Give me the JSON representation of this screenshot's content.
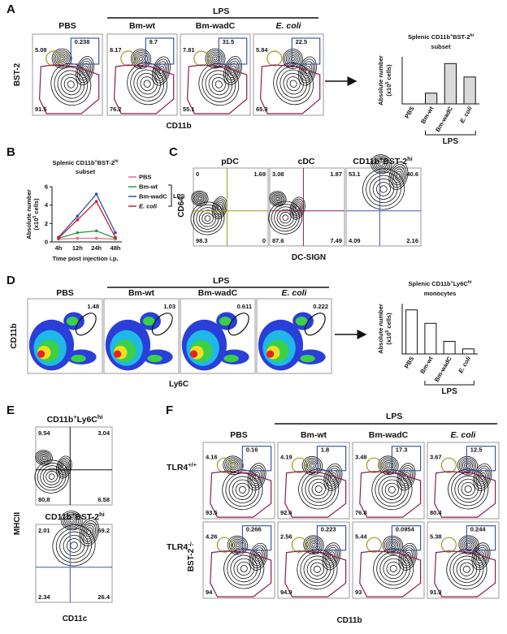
{
  "panel_a": {
    "label": "A",
    "group": "LPS",
    "columns": [
      "PBS",
      "Bm-wt",
      "Bm-wadC",
      "E. coli"
    ],
    "y_axis": "BST-2",
    "x_axis": "CD11b",
    "plots": [
      {
        "gate_left": 5.08,
        "gate_box": 0.238,
        "gate_bottom": 91.5
      },
      {
        "gate_left": 8.17,
        "gate_box": 9.7,
        "gate_bottom": 76.2
      },
      {
        "gate_left": 7.81,
        "gate_box": 31.5,
        "gate_bottom": 55.1
      },
      {
        "gate_left": 5.84,
        "gate_box": 22.5,
        "gate_bottom": 65.3
      }
    ],
    "bar_chart": {
      "type": "bar",
      "title": [
        "Splenic CD11b",
        "+",
        "BST-2",
        "hi"
      ],
      "subtitle": "subset",
      "y_label": "Absolute number",
      "y_label_unit": [
        "(x10",
        "5",
        " cells)"
      ],
      "categories": [
        "PBS",
        "Bm-wt",
        "Bm-wadC",
        "E. coli"
      ],
      "values": [
        0,
        0.8,
        3.0,
        2.0
      ],
      "ylim": [
        0,
        3.5
      ],
      "color": "#d9d9d9",
      "group": "LPS"
    }
  },
  "panel_b": {
    "label": "B",
    "chart": {
      "type": "line",
      "title": [
        "Splenic CD11b",
        "+",
        "BST-2",
        "hi"
      ],
      "subtitle": "subset",
      "y_label": "Absolute number",
      "y_label_unit": [
        "(x10",
        "5",
        " cells)"
      ],
      "x_label": "Time post injection i.p.",
      "categories": [
        "4h",
        "12h",
        "24h",
        "48h"
      ],
      "ylim": [
        0,
        6
      ],
      "yticks": [
        0,
        2,
        4,
        6
      ],
      "group": "LPS",
      "series": [
        {
          "name": "PBS",
          "color": "#e0708a",
          "values": [
            0.3,
            0.4,
            0.4,
            0.3
          ]
        },
        {
          "name": "Bm-wt",
          "color": "#2a9a3a",
          "values": [
            0.4,
            1.0,
            1.2,
            0.4
          ]
        },
        {
          "name": "Bm-wadC",
          "color": "#3050b0",
          "values": [
            0.5,
            2.8,
            5.2,
            1.0
          ]
        },
        {
          "name": "E. coli",
          "color": "#d02020",
          "values": [
            0.4,
            2.4,
            4.4,
            0.5
          ]
        }
      ]
    }
  },
  "panel_c": {
    "label": "C",
    "y_axis": "CD64",
    "x_axis": "DC-SIGN",
    "plots": [
      {
        "title": "pDC",
        "top_left": 0,
        "top_right": 1.69,
        "bottom_left": 98.3,
        "bottom_right": 0
      },
      {
        "title": "cDC",
        "top_left": 3.08,
        "top_right": 1.87,
        "bottom_left": 87.6,
        "bottom_right": 7.49
      },
      {
        "title": [
          "CD11b",
          "+",
          "BST-2",
          "hi"
        ],
        "top_left": 53.1,
        "top_right": 40.6,
        "bottom_left": 4.09,
        "bottom_right": 2.16
      }
    ]
  },
  "panel_d": {
    "label": "D",
    "group": "LPS",
    "columns": [
      "PBS",
      "Bm-wt",
      "Bm-wadC",
      "E. coli"
    ],
    "y_axis": "CD11b",
    "x_axis": "Ly6C",
    "gates": [
      1.48,
      1.03,
      0.611,
      0.222
    ],
    "bar_chart": {
      "type": "bar",
      "title": [
        "Splenic CD11b",
        "+",
        "Ly6C",
        "hi"
      ],
      "subtitle": "monocytes",
      "y_label": "Absolute number",
      "y_label_unit": [
        "(x10",
        "5",
        " cells)"
      ],
      "categories": [
        "PBS",
        "Bm-wt",
        "Bm-wadC",
        "E. coli"
      ],
      "values": [
        10.5,
        7.3,
        3.0,
        1.2
      ],
      "ylim": [
        0,
        12
      ],
      "color": "#ffffff",
      "group": "LPS"
    }
  },
  "panel_e": {
    "label": "E",
    "y_axis": "MHCII",
    "x_axis": "CD11c",
    "plots": [
      {
        "title": [
          "CD11b",
          "+",
          "Ly6C",
          "hi"
        ],
        "top_left": 9.54,
        "top_right": 3.04,
        "bottom_left": 80.8,
        "bottom_right": 6.58
      },
      {
        "title": [
          "CD11b",
          "+",
          "BST-2",
          "hi"
        ],
        "top_left": 2.01,
        "top_right": 69.2,
        "bottom_left": 2.34,
        "bottom_right": 26.4
      }
    ]
  },
  "panel_f": {
    "label": "F",
    "group": "LPS",
    "columns": [
      "PBS",
      "Bm-wt",
      "Bm-wadC",
      "E. coli"
    ],
    "rows": [
      [
        "TLR4",
        "+/+"
      ],
      [
        "TLR4",
        "-/-"
      ]
    ],
    "y_axis": "BST-2",
    "x_axis": "CD11b",
    "plots": [
      [
        {
          "gate_left": 4.16,
          "gate_box": 0.16,
          "gate_bottom": 93.5
        },
        {
          "gate_left": 4.19,
          "gate_box": 1.8,
          "gate_bottom": 92.6
        },
        {
          "gate_left": 3.48,
          "gate_box": 17.3,
          "gate_bottom": 76.8
        },
        {
          "gate_left": 3.67,
          "gate_box": 12.5,
          "gate_bottom": 80.4
        }
      ],
      [
        {
          "gate_left": 4.26,
          "gate_box": 0.266,
          "gate_bottom": 94
        },
        {
          "gate_left": 2.56,
          "gate_box": 0.223,
          "gate_bottom": 94.9
        },
        {
          "gate_left": 5.44,
          "gate_box": 0.0954,
          "gate_bottom": 93
        },
        {
          "gate_left": 5.38,
          "gate_box": 0.244,
          "gate_bottom": 91.3
        }
      ]
    ]
  }
}
